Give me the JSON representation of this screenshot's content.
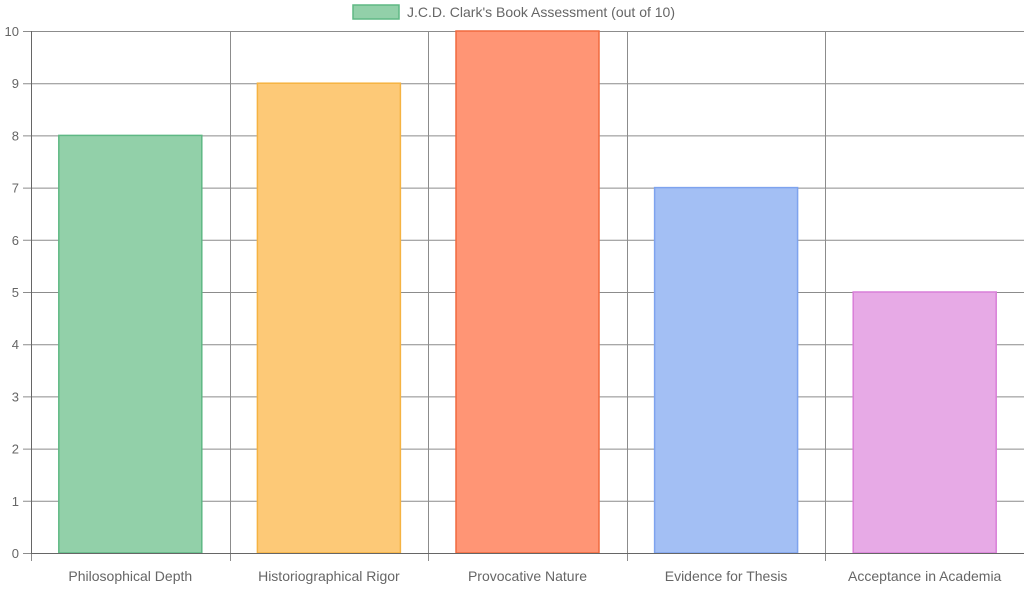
{
  "chart_data": {
    "type": "bar",
    "categories": [
      "Philosophical Depth",
      "Historiographical Rigor",
      "Provocative Nature",
      "Evidence for Thesis",
      "Acceptance in Academia"
    ],
    "series": [
      {
        "name": "J.C.D. Clark's Book Assessment (out of 10)",
        "values": [
          8,
          9,
          10,
          7,
          5
        ]
      }
    ],
    "bar_fill_colors": [
      "#92d0a9",
      "#fdc977",
      "#ff9575",
      "#a3bff4",
      "#e7aae6"
    ],
    "bar_border_colors": [
      "#5fb884",
      "#f5b342",
      "#f06a3f",
      "#7ea3ee",
      "#d97fd8"
    ],
    "legend_swatch": {
      "fill": "#92d0a9",
      "border": "#5fb884"
    },
    "grid_color": "#8c8c8c",
    "ylim": [
      0,
      10
    ],
    "yticks": [
      0,
      1,
      2,
      3,
      4,
      5,
      6,
      7,
      8,
      9,
      10
    ],
    "grid": true,
    "legend_position": "top-center"
  }
}
